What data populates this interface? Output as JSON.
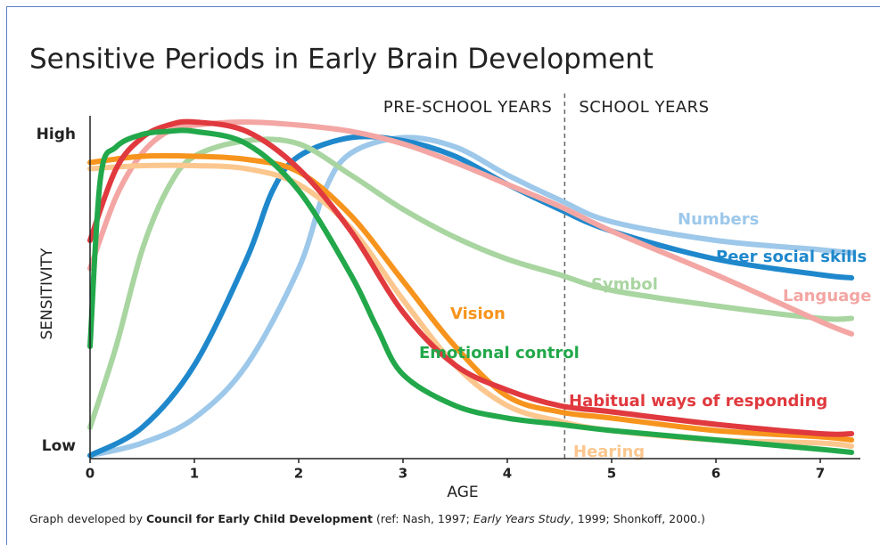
{
  "chart_data": {
    "type": "line",
    "title": "Sensitive Periods in Early Brain Development",
    "period_labels": [
      "PRE-SCHOOL YEARS",
      "SCHOOL YEARS"
    ],
    "period_divider": 4.55,
    "xlabel": "AGE",
    "ylabel": "SENSITIVITY",
    "xlim": [
      0,
      7.3
    ],
    "xticks": [
      0,
      1,
      2,
      3,
      4,
      5,
      6,
      7
    ],
    "ylim": [
      -0.04,
      1.06
    ],
    "yticks": [
      {
        "value": 1,
        "label": "High"
      },
      {
        "value": 0,
        "label": "Low"
      }
    ],
    "series": [
      {
        "name": "Numbers",
        "color": "#9dc8ea",
        "x": [
          0,
          0.5,
          1,
          1.5,
          2,
          2.25,
          2.5,
          3,
          3.5,
          4,
          4.5,
          5,
          6,
          7,
          7.3
        ],
        "values": [
          -0.03,
          0.01,
          0.09,
          0.26,
          0.57,
          0.82,
          0.94,
          0.99,
          0.96,
          0.87,
          0.79,
          0.72,
          0.66,
          0.63,
          0.62
        ]
      },
      {
        "name": "Peer social skills",
        "color": "#1f88cc",
        "x": [
          0,
          0.5,
          1,
          1.5,
          1.75,
          2,
          2.5,
          3,
          3.5,
          4,
          4.5,
          5,
          6,
          7,
          7.3
        ],
        "values": [
          -0.03,
          0.06,
          0.26,
          0.6,
          0.82,
          0.93,
          0.99,
          0.98,
          0.93,
          0.84,
          0.76,
          0.69,
          0.6,
          0.55,
          0.54
        ]
      },
      {
        "name": "Symbol",
        "color": "#a8d5a0",
        "x": [
          0,
          0.25,
          0.5,
          0.75,
          1,
          1.5,
          2,
          2.5,
          3,
          3.5,
          4,
          4.5,
          5,
          6,
          7,
          7.3
        ],
        "values": [
          0.06,
          0.32,
          0.63,
          0.83,
          0.93,
          0.98,
          0.97,
          0.87,
          0.76,
          0.67,
          0.6,
          0.55,
          0.5,
          0.45,
          0.41,
          0.41
        ]
      },
      {
        "name": "Language",
        "color": "#f3a6a3",
        "x": [
          0,
          0.25,
          0.5,
          0.75,
          1,
          1.5,
          2,
          2.5,
          3,
          3.5,
          4,
          4.5,
          5,
          6,
          7,
          7.3
        ],
        "values": [
          0.57,
          0.8,
          0.94,
          1.01,
          1.03,
          1.04,
          1.03,
          1.01,
          0.97,
          0.91,
          0.84,
          0.77,
          0.69,
          0.55,
          0.4,
          0.36
        ]
      },
      {
        "name": "Hearing",
        "color": "#fcc78e",
        "x": [
          0,
          0.5,
          1,
          1.5,
          2,
          2.5,
          3,
          3.5,
          4,
          4.5,
          5,
          6,
          7,
          7.3
        ],
        "values": [
          0.89,
          0.9,
          0.9,
          0.89,
          0.84,
          0.7,
          0.47,
          0.26,
          0.13,
          0.08,
          0.05,
          0.02,
          0.01,
          0
        ]
      },
      {
        "name": "Vision",
        "color": "#f7941d",
        "x": [
          0,
          0.5,
          1,
          1.5,
          2,
          2.5,
          3,
          3.5,
          4,
          4.5,
          5,
          6,
          7,
          7.3
        ],
        "values": [
          0.91,
          0.93,
          0.93,
          0.92,
          0.88,
          0.74,
          0.53,
          0.32,
          0.16,
          0.11,
          0.09,
          0.05,
          0.03,
          0.02
        ]
      },
      {
        "name": "Habitual ways of responding",
        "color": "#e0393e",
        "x": [
          0,
          0.25,
          0.5,
          0.75,
          1,
          1.5,
          2,
          2.5,
          3,
          3.5,
          4,
          4.5,
          5,
          6,
          7,
          7.3
        ],
        "values": [
          0.66,
          0.89,
          0.99,
          1.03,
          1.04,
          1.01,
          0.89,
          0.69,
          0.43,
          0.26,
          0.18,
          0.13,
          0.11,
          0.07,
          0.04,
          0.04
        ]
      },
      {
        "name": "Emotional control",
        "color": "#22a84a",
        "x": [
          0,
          0.1,
          0.25,
          0.5,
          0.75,
          1,
          1.5,
          2,
          2.5,
          2.75,
          3,
          3.5,
          4,
          4.5,
          5,
          6,
          7,
          7.3
        ],
        "values": [
          0.32,
          0.86,
          0.96,
          1.0,
          1.01,
          1.01,
          0.97,
          0.82,
          0.55,
          0.38,
          0.23,
          0.13,
          0.09,
          0.07,
          0.05,
          0.02,
          -0.01,
          -0.02
        ]
      }
    ],
    "footer": [
      {
        "text": "Graph developed by ",
        "style": "normal"
      },
      {
        "text": "Council for Early Child Development",
        "style": "bold"
      },
      {
        "text": " (ref: Nash, 1997; ",
        "style": "normal"
      },
      {
        "text": "Early Years Study",
        "style": "italic"
      },
      {
        "text": ", 1999; Shonkoff, 2000.)",
        "style": "normal"
      }
    ]
  }
}
